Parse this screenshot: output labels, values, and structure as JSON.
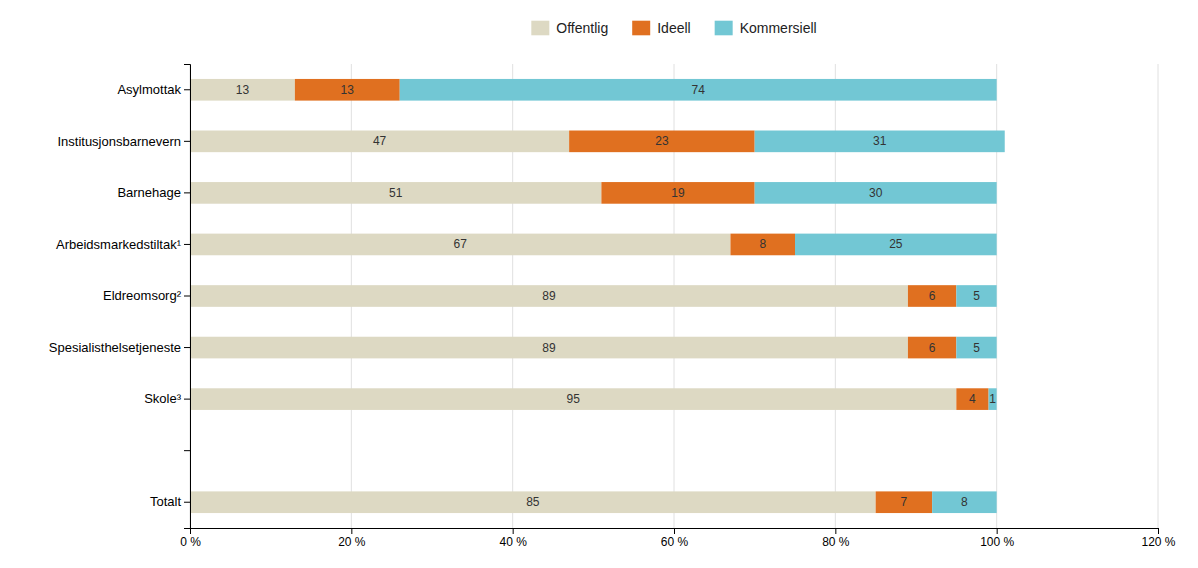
{
  "chart_data": {
    "type": "bar",
    "orientation": "horizontal",
    "stacked": true,
    "categories": [
      "Asylmottak",
      "Institusjonsbarnevern",
      "Barnehage",
      "Arbeidsmarkedstiltak¹",
      "Eldreomsorg²",
      "Spesialisthelsetjeneste",
      "Skole³",
      null,
      "Totalt"
    ],
    "series": [
      {
        "name": "Offentlig",
        "color": "#ddd9c3",
        "values": [
          13,
          47,
          51,
          67,
          89,
          89,
          95,
          0,
          85
        ]
      },
      {
        "name": "Ideell",
        "color": "#e07020",
        "values": [
          13,
          23,
          19,
          8,
          6,
          6,
          4,
          0,
          7
        ]
      },
      {
        "name": "Kommersiell",
        "color": "#72c7d4",
        "values": [
          74,
          31,
          30,
          25,
          5,
          5,
          1,
          0,
          8
        ]
      }
    ],
    "xlim": [
      0,
      120
    ],
    "xticks": [
      {
        "value": 0,
        "label": "0 %"
      },
      {
        "value": 20,
        "label": "20 %"
      },
      {
        "value": 40,
        "label": "40 %"
      },
      {
        "value": 60,
        "label": "60 %"
      },
      {
        "value": 80,
        "label": "80 %"
      },
      {
        "value": 100,
        "label": "100 %"
      },
      {
        "value": 120,
        "label": "120 %"
      }
    ],
    "grid": true,
    "legend": "top",
    "data_labels": true
  }
}
